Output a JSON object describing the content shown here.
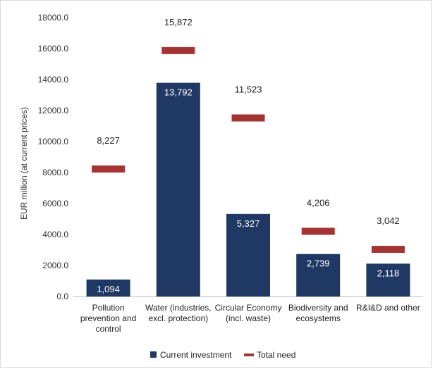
{
  "chart_data": {
    "type": "bar",
    "ylabel": "EUR million (at current prices)",
    "ylim": [
      0,
      18000
    ],
    "yticks": [
      0,
      2000,
      4000,
      6000,
      8000,
      10000,
      12000,
      14000,
      16000,
      18000
    ],
    "ytick_labels": [
      "0.0",
      "2000.0",
      "4000.0",
      "6000.0",
      "8000.0",
      "10000.0",
      "12000.0",
      "14000.0",
      "16000.0",
      "18000.0"
    ],
    "grid": false,
    "legend_position": "bottom",
    "categories": [
      [
        "Pollution",
        "prevention and",
        "control"
      ],
      [
        "Water (industries,",
        "excl. protection)"
      ],
      [
        "Circular Economy",
        "(incl. waste)"
      ],
      [
        "Biodiversity and",
        "ecosystems"
      ],
      [
        "R&I&D and other"
      ]
    ],
    "series": [
      {
        "name": "Current investment",
        "type": "bar",
        "color": "#1f3864",
        "values": [
          1094,
          13792,
          5327,
          2739,
          2118
        ],
        "labels": [
          "1,094",
          "13,792",
          "5,327",
          "2,739",
          "2,118"
        ]
      },
      {
        "name": "Total need",
        "type": "marker",
        "color": "#a33434",
        "values": [
          8227,
          15872,
          11523,
          4206,
          3042
        ],
        "labels": [
          "8,227",
          "15,872",
          "11,523",
          "4,206",
          "3,042"
        ]
      }
    ]
  }
}
